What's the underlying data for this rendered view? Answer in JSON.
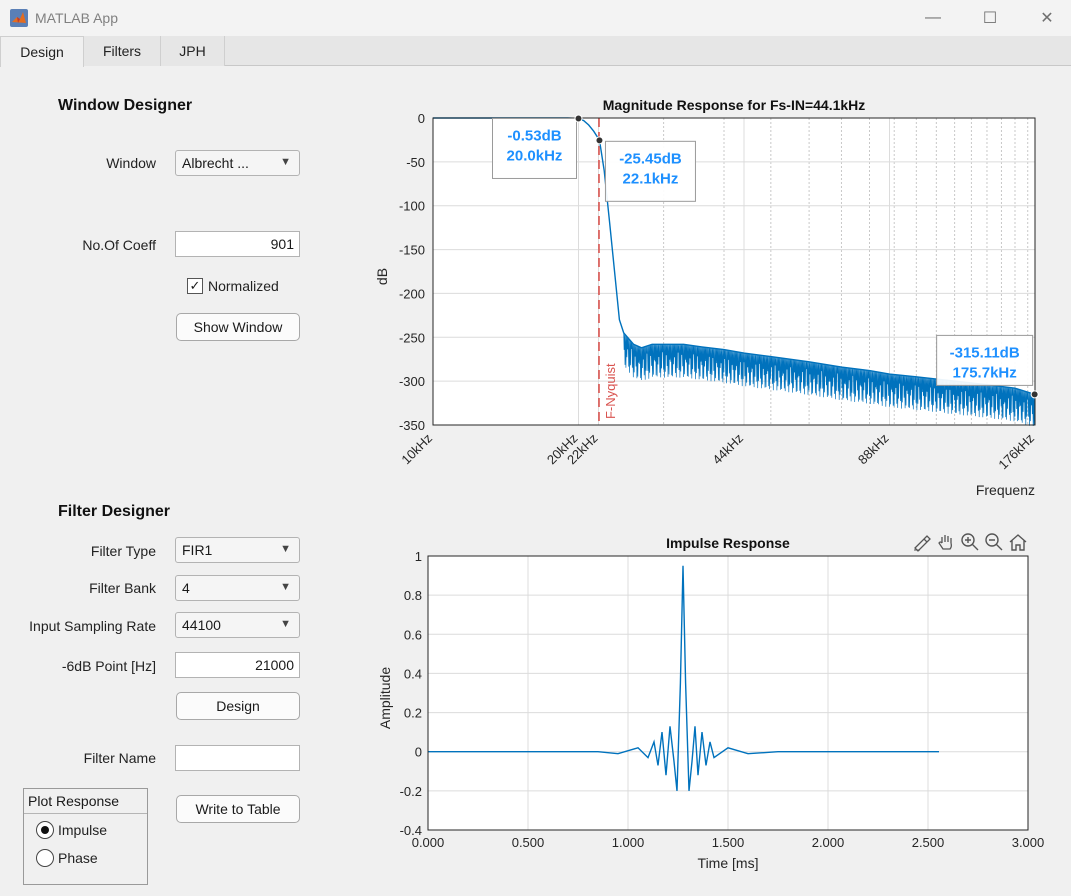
{
  "window": {
    "title": "MATLAB App",
    "minimize": "—",
    "maximize": "☐",
    "close": "✕"
  },
  "tabs": [
    "Design",
    "Filters",
    "JPH"
  ],
  "window_designer": {
    "title": "Window Designer",
    "window_label": "Window",
    "window_value": "Albrecht ...",
    "coeff_label": "No.Of Coeff",
    "coeff_value": "901",
    "normalized_label": "Normalized",
    "normalized_checked": true,
    "show_window_label": "Show Window"
  },
  "filter_designer": {
    "title": "Filter Designer",
    "filter_type_label": "Filter Type",
    "filter_type_value": "FIR1",
    "filter_bank_label": "Filter Bank",
    "filter_bank_value": "4",
    "sampling_rate_label": "Input Sampling Rate",
    "sampling_rate_value": "44100",
    "point_label": "-6dB Point [Hz]",
    "point_value": "21000",
    "design_label": "Design",
    "filter_name_label": "Filter Name",
    "filter_name_value": "",
    "write_table_label": "Write to Table"
  },
  "plot_response": {
    "title": "Plot Response",
    "options": [
      "Impulse",
      "Phase"
    ],
    "selected": "Impulse"
  },
  "chart_data": [
    {
      "type": "line",
      "title": "Magnitude Response for Fs-IN=44.1kHz",
      "xlabel": "Frequenz",
      "ylabel": "dB",
      "xscale": "log",
      "xlim": [
        10,
        176
      ],
      "ylim": [
        -350,
        0
      ],
      "xticks": [
        10,
        20,
        22,
        44,
        88,
        176
      ],
      "xtick_labels": [
        "10kHz",
        "20kHz",
        "22kHz",
        "44kHz",
        "88kHz",
        "176kHz"
      ],
      "yticks": [
        0,
        -50,
        -100,
        -150,
        -200,
        -250,
        -300,
        -350
      ],
      "ytick_labels": [
        "0",
        "-50",
        "-100",
        "-150",
        "-200",
        "-250",
        "-300",
        "-350"
      ],
      "grid": true,
      "color": "#0072bd",
      "marker_line": {
        "x": 22.05,
        "label": "F-Nyquist",
        "color": "#d9534f"
      },
      "series": [
        {
          "name": "magnitude",
          "x": [
            10,
            15,
            19,
            20,
            20.5,
            21,
            21.5,
            22.1,
            22.6,
            23.2,
            23.8,
            24.3,
            24.8,
            25,
            26,
            27,
            28.4,
            30,
            33,
            36,
            40,
            44,
            50,
            60,
            70,
            80,
            88,
            100,
            120,
            140,
            160,
            176
          ],
          "y": [
            0,
            0,
            0,
            -0.53,
            -3,
            -8,
            -15,
            -25.45,
            -60,
            -120,
            -180,
            -230,
            -245,
            -247,
            -258,
            -262,
            -258,
            -258,
            -258,
            -261,
            -264,
            -268,
            -272,
            -278,
            -284,
            -288,
            -292,
            -295,
            -300,
            -304,
            -308,
            -315.11
          ]
        }
      ],
      "datatips": [
        {
          "x": 20.0,
          "y": -0.53,
          "line1": "-0.53dB",
          "line2": "20.0kHz"
        },
        {
          "x": 22.1,
          "y": -25.45,
          "line1": "-25.45dB",
          "line2": "22.1kHz"
        },
        {
          "x": 175.7,
          "y": -315.11,
          "line1": "-315.11dB",
          "line2": "175.7kHz"
        }
      ]
    },
    {
      "type": "line",
      "title": "Impulse Response",
      "xlabel": "Time [ms]",
      "ylabel": "Amplitude",
      "xlim": [
        0,
        3
      ],
      "ylim": [
        -0.4,
        1
      ],
      "xticks": [
        0,
        0.5,
        1,
        1.5,
        2,
        2.5,
        3
      ],
      "xtick_labels": [
        "0.000",
        "0.500",
        "1.000",
        "1.500",
        "2.000",
        "2.500",
        "3.000"
      ],
      "yticks": [
        1,
        0.8,
        0.6,
        0.4,
        0.2,
        0,
        -0.2,
        -0.4
      ],
      "ytick_labels": [
        "1",
        "0.8",
        "0.6",
        "0.4",
        "0.2",
        "0",
        "-0.2",
        "-0.4"
      ],
      "grid": true,
      "color": "#0072bd",
      "series": [
        {
          "name": "impulse",
          "x": [
            0,
            0.85,
            0.95,
            1.05,
            1.1,
            1.13,
            1.15,
            1.17,
            1.19,
            1.21,
            1.23,
            1.245,
            1.262,
            1.275,
            1.288,
            1.305,
            1.32,
            1.335,
            1.35,
            1.37,
            1.39,
            1.41,
            1.43,
            1.5,
            1.6,
            1.75,
            2.555
          ],
          "y": [
            0,
            0,
            -0.01,
            0.02,
            -0.03,
            0.05,
            -0.07,
            0.1,
            -0.12,
            0.13,
            -0.05,
            -0.2,
            0.35,
            0.95,
            0.35,
            -0.2,
            -0.05,
            0.13,
            -0.12,
            0.1,
            -0.07,
            0.05,
            -0.03,
            0.02,
            -0.01,
            0,
            0
          ]
        }
      ]
    }
  ]
}
